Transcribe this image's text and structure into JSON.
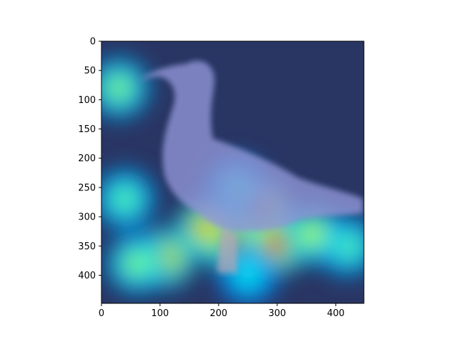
{
  "chart_data": {
    "type": "heatmap",
    "description_kind": "image overlaid with attention heatmap",
    "title": "",
    "xlabel": "",
    "ylabel": "",
    "xlim": [
      0,
      448
    ],
    "ylim": [
      448,
      0
    ],
    "x_ticks": [
      0,
      100,
      200,
      300,
      400
    ],
    "y_ticks": [
      0,
      50,
      100,
      150,
      200,
      250,
      300,
      350,
      400
    ],
    "colormap": "jet",
    "grid": false,
    "legend": "none",
    "hotspots": [
      {
        "x": 270,
        "y": 290,
        "intensity": 1.0
      },
      {
        "x": 220,
        "y": 340,
        "intensity": 0.95
      },
      {
        "x": 300,
        "y": 345,
        "intensity": 0.85
      },
      {
        "x": 180,
        "y": 320,
        "intensity": 0.75
      },
      {
        "x": 110,
        "y": 370,
        "intensity": 0.7
      },
      {
        "x": 60,
        "y": 380,
        "intensity": 0.55
      },
      {
        "x": 40,
        "y": 270,
        "intensity": 0.5
      },
      {
        "x": 30,
        "y": 80,
        "intensity": 0.55
      },
      {
        "x": 420,
        "y": 350,
        "intensity": 0.5
      },
      {
        "x": 360,
        "y": 330,
        "intensity": 0.6
      },
      {
        "x": 230,
        "y": 250,
        "intensity": 0.45
      },
      {
        "x": 250,
        "y": 400,
        "intensity": 0.4
      }
    ]
  },
  "colors": {
    "background_dark": "#1f2a55",
    "grass": "#2c3a5e",
    "bird_body": "#8a8fd0",
    "bird_head": "#9da0d4",
    "axis": "#000000"
  }
}
